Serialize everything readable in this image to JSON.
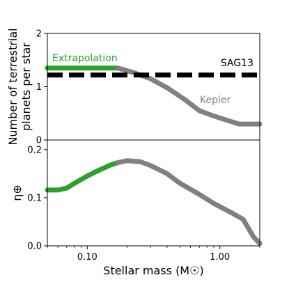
{
  "chart_data": [
    {
      "type": "line",
      "panel": "top",
      "xscale": "log",
      "xlim": [
        0.05,
        2.0
      ],
      "ylim": [
        0,
        2
      ],
      "yticks": [
        0,
        1,
        2
      ],
      "ytick_labels": [
        "0",
        "1",
        "2"
      ],
      "ylabel_line1": "Number of terrestrial",
      "ylabel_line2": "planets per star",
      "grid": false,
      "series": [
        {
          "name": "Extrapolation",
          "color": "#2ca02c",
          "style": "solid",
          "x": [
            0.05,
            0.08,
            0.12,
            0.17
          ],
          "y": [
            1.35,
            1.35,
            1.35,
            1.35
          ]
        },
        {
          "name": "Kepler",
          "color": "#808080",
          "style": "solid",
          "x": [
            0.17,
            0.22,
            0.3,
            0.4,
            0.55,
            0.7,
            0.9,
            1.1,
            1.4,
            2.0
          ],
          "y": [
            1.35,
            1.27,
            1.15,
            0.98,
            0.75,
            0.55,
            0.45,
            0.38,
            0.3,
            0.3
          ]
        },
        {
          "name": "SAG13",
          "color": "#000000",
          "style": "dashed",
          "x": [
            0.05,
            2.0
          ],
          "y": [
            1.22,
            1.22
          ]
        }
      ],
      "annotations": [
        {
          "text": "Extrapolation",
          "color": "#2ca02c"
        },
        {
          "text": "SAG13",
          "color": "#000000"
        },
        {
          "text": "Kepler",
          "color": "#808080"
        }
      ]
    },
    {
      "type": "line",
      "panel": "bottom",
      "xscale": "log",
      "xlim": [
        0.05,
        2.0
      ],
      "ylim": [
        0,
        0.22
      ],
      "yticks": [
        0,
        0.1,
        0.2
      ],
      "ytick_labels": [
        "0.0",
        "0.1",
        "0.2"
      ],
      "ylabel": "η⊕",
      "xticks": [
        0.1,
        1.0
      ],
      "xtick_labels": [
        "0.10",
        "1.00"
      ],
      "xlabel": "Stellar mass (M☉)",
      "grid": false,
      "series": [
        {
          "color": "#2ca02c",
          "style": "solid",
          "x": [
            0.05,
            0.06,
            0.07,
            0.08,
            0.1,
            0.12,
            0.15,
            0.17
          ],
          "y": [
            0.116,
            0.116,
            0.12,
            0.13,
            0.145,
            0.156,
            0.168,
            0.173
          ]
        },
        {
          "color": "#808080",
          "style": "solid",
          "x": [
            0.17,
            0.2,
            0.25,
            0.3,
            0.4,
            0.5,
            0.7,
            0.9,
            1.2,
            1.5,
            1.8,
            2.0
          ],
          "y": [
            0.173,
            0.177,
            0.175,
            0.167,
            0.15,
            0.13,
            0.107,
            0.088,
            0.07,
            0.055,
            0.018,
            0.005
          ]
        }
      ]
    }
  ]
}
